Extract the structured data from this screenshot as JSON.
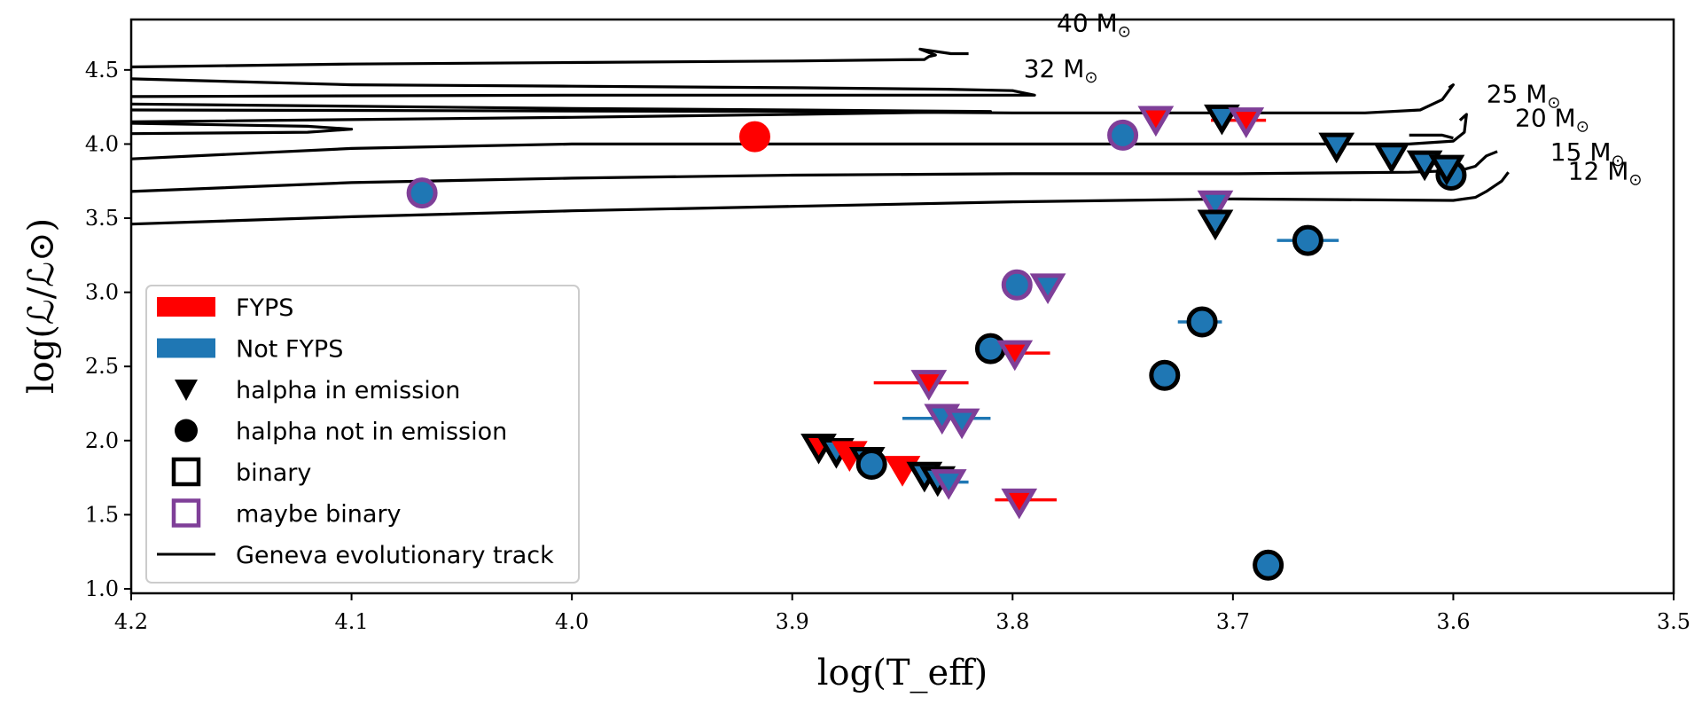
{
  "chart_data": {
    "type": "scatter",
    "title": "",
    "xlabel": "log(T_eff)",
    "ylabel": "log(ℒ/ℒ⊙)",
    "xlim": [
      4.2,
      3.5
    ],
    "ylim": [
      0.97,
      4.84
    ],
    "x_reversed": true,
    "grid": false,
    "legend_placement": "lower-left",
    "x_ticks": [
      "4.2",
      "4.1",
      "4.0",
      "3.9",
      "3.8",
      "3.7",
      "3.6",
      "3.5"
    ],
    "y_ticks": [
      "1.0",
      "1.5",
      "2.0",
      "2.5",
      "3.0",
      "3.5",
      "4.0",
      "4.5"
    ],
    "colors": {
      "fyps": "#ff0000",
      "not_fyps": "#1f77b4",
      "binary_edge": "#000000",
      "maybe_binary_edge": "#7f3f98",
      "track": "#000000"
    },
    "legend": [
      {
        "label": "FYPS",
        "kind": "patch",
        "color": "#ff0000"
      },
      {
        "label": "Not FYPS",
        "kind": "patch",
        "color": "#1f77b4"
      },
      {
        "label": "halpha in emission",
        "kind": "triangle"
      },
      {
        "label": "halpha not in emission",
        "kind": "circle"
      },
      {
        "label": "binary",
        "kind": "square",
        "color": "#000000"
      },
      {
        "label": "maybe binary",
        "kind": "square",
        "color": "#7f3f98"
      },
      {
        "label": "Geneva evolutionary track",
        "kind": "line"
      }
    ],
    "track_labels": [
      {
        "name": "40 M",
        "sub": "⊙",
        "x": 3.78,
        "y": 4.76
      },
      {
        "name": "32 M",
        "sub": "⊙",
        "x": 3.795,
        "y": 4.45
      },
      {
        "name": "25 M",
        "sub": "⊙",
        "x": 3.585,
        "y": 4.28
      },
      {
        "name": "20 M",
        "sub": "⊙",
        "x": 3.572,
        "y": 4.12
      },
      {
        "name": "15 M",
        "sub": "⊙",
        "x": 3.556,
        "y": 3.89
      },
      {
        "name": "12 M",
        "sub": "⊙",
        "x": 3.548,
        "y": 3.76
      }
    ],
    "tracks": [
      {
        "name": "40",
        "points": [
          [
            4.2,
            4.52
          ],
          [
            4.1,
            4.54
          ],
          [
            4.0,
            4.55
          ],
          [
            3.9,
            4.56
          ],
          [
            3.84,
            4.57
          ],
          [
            3.838,
            4.59
          ],
          [
            3.835,
            4.6
          ],
          [
            3.842,
            4.64
          ],
          [
            3.828,
            4.61
          ],
          [
            3.82,
            4.61
          ]
        ]
      },
      {
        "name": "32",
        "points": [
          [
            4.2,
            4.44
          ],
          [
            4.1,
            4.4
          ],
          [
            4.0,
            4.39
          ],
          [
            3.9,
            4.38
          ],
          [
            3.83,
            4.37
          ],
          [
            3.8,
            4.36
          ],
          [
            3.79,
            4.33
          ],
          [
            4.0,
            4.33
          ],
          [
            4.2,
            4.32
          ]
        ]
      },
      {
        "name": "32-loop",
        "points": [
          [
            4.2,
            4.27
          ],
          [
            4.0,
            4.24
          ],
          [
            3.9,
            4.23
          ],
          [
            3.81,
            4.22
          ],
          [
            3.9,
            4.2
          ],
          [
            4.0,
            4.18
          ],
          [
            4.2,
            4.15
          ]
        ]
      },
      {
        "name": "25",
        "points": [
          [
            4.2,
            4.23
          ],
          [
            3.9,
            4.22
          ],
          [
            3.8,
            4.21
          ],
          [
            3.7,
            4.21
          ],
          [
            3.64,
            4.21
          ],
          [
            3.615,
            4.23
          ],
          [
            3.605,
            4.3
          ],
          [
            3.6,
            4.4
          ],
          [
            3.602,
            4.38
          ]
        ]
      },
      {
        "name": "20-loop",
        "points": [
          [
            4.2,
            4.14
          ],
          [
            4.12,
            4.12
          ],
          [
            4.1,
            4.1
          ],
          [
            4.12,
            4.08
          ],
          [
            4.2,
            4.07
          ]
        ]
      },
      {
        "name": "20",
        "points": [
          [
            4.2,
            3.9
          ],
          [
            4.1,
            3.97
          ],
          [
            4.0,
            4.0
          ],
          [
            3.9,
            4.0
          ],
          [
            3.8,
            4.0
          ],
          [
            3.7,
            4.0
          ],
          [
            3.62,
            4.0
          ],
          [
            3.6,
            4.02
          ],
          [
            3.595,
            4.08
          ],
          [
            3.594,
            4.2
          ],
          [
            3.597,
            4.16
          ]
        ]
      },
      {
        "name": "20-branch",
        "points": [
          [
            3.62,
            4.06
          ],
          [
            3.605,
            4.06
          ],
          [
            3.6,
            4.04
          ]
        ]
      },
      {
        "name": "15",
        "points": [
          [
            4.2,
            3.68
          ],
          [
            4.1,
            3.74
          ],
          [
            4.0,
            3.77
          ],
          [
            3.9,
            3.79
          ],
          [
            3.8,
            3.8
          ],
          [
            3.7,
            3.8
          ],
          [
            3.62,
            3.81
          ],
          [
            3.6,
            3.82
          ],
          [
            3.595,
            3.83
          ],
          [
            3.59,
            3.85
          ],
          [
            3.585,
            3.92
          ],
          [
            3.58,
            3.95
          ]
        ]
      },
      {
        "name": "12",
        "points": [
          [
            4.2,
            3.46
          ],
          [
            4.1,
            3.51
          ],
          [
            4.0,
            3.55
          ],
          [
            3.9,
            3.58
          ],
          [
            3.8,
            3.61
          ],
          [
            3.7,
            3.63
          ],
          [
            3.6,
            3.62
          ],
          [
            3.59,
            3.64
          ],
          [
            3.585,
            3.68
          ],
          [
            3.578,
            3.75
          ],
          [
            3.575,
            3.81
          ]
        ]
      }
    ],
    "error_bars": [
      {
        "y": 4.16,
        "x_from": 3.71,
        "x_to": 3.685,
        "color": "#ff0000"
      },
      {
        "y": 3.35,
        "x_from": 3.68,
        "x_to": 3.652,
        "color": "#1f77b4"
      },
      {
        "y": 2.8,
        "x_from": 3.725,
        "x_to": 3.705,
        "color": "#1f77b4"
      },
      {
        "y": 2.59,
        "x_from": 3.815,
        "x_to": 3.783,
        "color": "#ff0000"
      },
      {
        "y": 2.39,
        "x_from": 3.863,
        "x_to": 3.82,
        "color": "#ff0000"
      },
      {
        "y": 2.15,
        "x_from": 3.85,
        "x_to": 3.81,
        "color": "#1f77b4"
      },
      {
        "y": 1.6,
        "x_from": 3.808,
        "x_to": 3.78,
        "color": "#ff0000"
      },
      {
        "y": 1.72,
        "x_from": 3.84,
        "x_to": 3.82,
        "color": "#1f77b4"
      }
    ],
    "points": [
      {
        "x": 3.917,
        "y": 4.05,
        "marker": "circle",
        "fyps": true,
        "binary": "none"
      },
      {
        "x": 4.068,
        "y": 3.67,
        "marker": "circle",
        "fyps": false,
        "binary": "maybe"
      },
      {
        "x": 3.75,
        "y": 4.06,
        "marker": "circle",
        "fyps": false,
        "binary": "maybe"
      },
      {
        "x": 3.735,
        "y": 4.17,
        "marker": "triangle",
        "fyps": true,
        "binary": "maybe"
      },
      {
        "x": 3.705,
        "y": 4.18,
        "marker": "triangle",
        "fyps": false,
        "binary": "binary"
      },
      {
        "x": 3.694,
        "y": 4.16,
        "marker": "triangle",
        "fyps": true,
        "binary": "maybe"
      },
      {
        "x": 3.653,
        "y": 3.99,
        "marker": "triangle",
        "fyps": false,
        "binary": "binary"
      },
      {
        "x": 3.628,
        "y": 3.92,
        "marker": "triangle",
        "fyps": false,
        "binary": "binary"
      },
      {
        "x": 3.613,
        "y": 3.87,
        "marker": "triangle",
        "fyps": false,
        "binary": "binary"
      },
      {
        "x": 3.601,
        "y": 3.79,
        "marker": "circle",
        "fyps": false,
        "binary": "binary"
      },
      {
        "x": 3.603,
        "y": 3.84,
        "marker": "triangle",
        "fyps": false,
        "binary": "binary"
      },
      {
        "x": 3.708,
        "y": 3.6,
        "marker": "triangle",
        "fyps": false,
        "binary": "maybe"
      },
      {
        "x": 3.708,
        "y": 3.47,
        "marker": "triangle",
        "fyps": false,
        "binary": "binary"
      },
      {
        "x": 3.666,
        "y": 3.35,
        "marker": "circle",
        "fyps": false,
        "binary": "binary"
      },
      {
        "x": 3.798,
        "y": 3.05,
        "marker": "circle",
        "fyps": false,
        "binary": "maybe"
      },
      {
        "x": 3.784,
        "y": 3.04,
        "marker": "triangle",
        "fyps": false,
        "binary": "maybe"
      },
      {
        "x": 3.714,
        "y": 2.8,
        "marker": "circle",
        "fyps": false,
        "binary": "binary"
      },
      {
        "x": 3.81,
        "y": 2.62,
        "marker": "circle",
        "fyps": false,
        "binary": "binary"
      },
      {
        "x": 3.799,
        "y": 2.59,
        "marker": "triangle",
        "fyps": true,
        "binary": "maybe"
      },
      {
        "x": 3.731,
        "y": 2.44,
        "marker": "circle",
        "fyps": false,
        "binary": "binary"
      },
      {
        "x": 3.838,
        "y": 2.39,
        "marker": "triangle",
        "fyps": true,
        "binary": "maybe"
      },
      {
        "x": 3.832,
        "y": 2.16,
        "marker": "triangle",
        "fyps": false,
        "binary": "maybe"
      },
      {
        "x": 3.823,
        "y": 2.13,
        "marker": "triangle",
        "fyps": false,
        "binary": "maybe"
      },
      {
        "x": 3.888,
        "y": 1.96,
        "marker": "triangle",
        "fyps": true,
        "binary": "binary"
      },
      {
        "x": 3.88,
        "y": 1.93,
        "marker": "triangle",
        "fyps": false,
        "binary": "binary"
      },
      {
        "x": 3.874,
        "y": 1.91,
        "marker": "triangle",
        "fyps": true,
        "binary": "none"
      },
      {
        "x": 3.866,
        "y": 1.87,
        "marker": "triangle",
        "fyps": false,
        "binary": "binary"
      },
      {
        "x": 3.864,
        "y": 1.84,
        "marker": "circle",
        "fyps": false,
        "binary": "binary"
      },
      {
        "x": 3.85,
        "y": 1.81,
        "marker": "triangle",
        "fyps": true,
        "binary": "none"
      },
      {
        "x": 3.84,
        "y": 1.77,
        "marker": "triangle",
        "fyps": false,
        "binary": "binary"
      },
      {
        "x": 3.834,
        "y": 1.74,
        "marker": "triangle",
        "fyps": false,
        "binary": "binary"
      },
      {
        "x": 3.829,
        "y": 1.72,
        "marker": "triangle",
        "fyps": false,
        "binary": "maybe"
      },
      {
        "x": 3.797,
        "y": 1.59,
        "marker": "triangle",
        "fyps": true,
        "binary": "maybe"
      },
      {
        "x": 3.684,
        "y": 1.16,
        "marker": "circle",
        "fyps": false,
        "binary": "binary"
      }
    ]
  }
}
